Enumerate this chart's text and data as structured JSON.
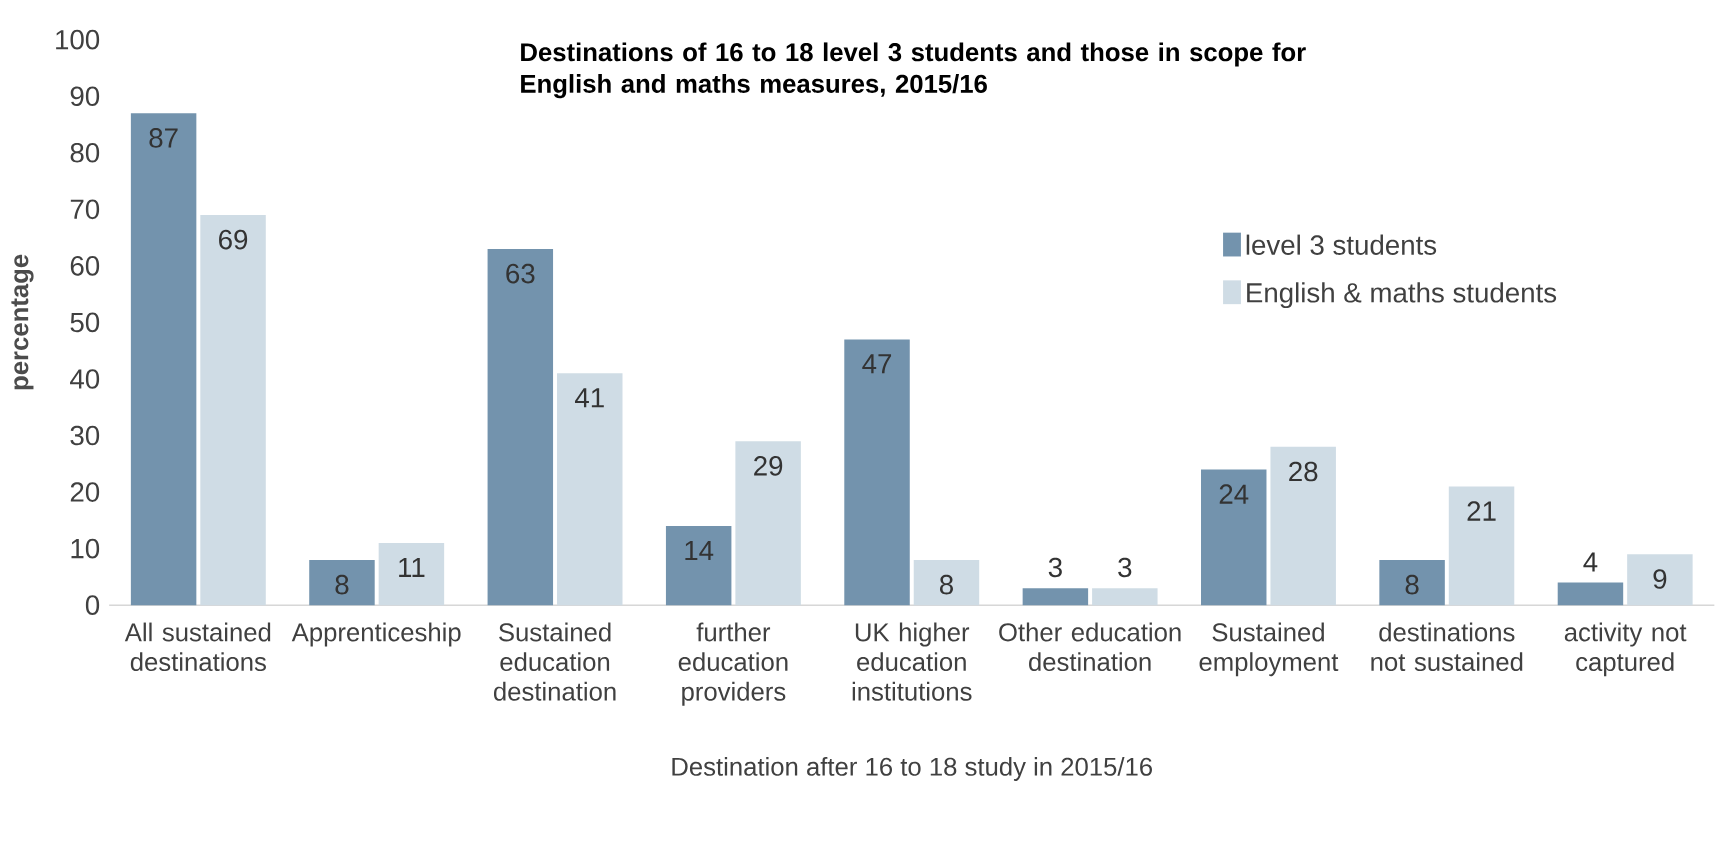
{
  "chart_data": {
    "type": "bar",
    "title": "Destinations of 16 to 18 level 3 students and those in scope for English and maths measures, 2015/16",
    "xlabel": "Destination after 16 to 18 study in 2015/16",
    "ylabel": "percentage",
    "categories": [
      "All sustained destinations",
      "Apprenticeship",
      "Sustained education destination",
      "further education providers",
      "UK higher education institutions",
      "Other education destination",
      "Sustained employment",
      "destinations not sustained",
      "activity not captured"
    ],
    "series": [
      {
        "name": "level 3 students",
        "color": "#7393ad",
        "values": [
          87,
          8,
          63,
          14,
          47,
          3,
          24,
          8,
          4
        ]
      },
      {
        "name": "English & maths students",
        "color": "#cfdce5",
        "values": [
          69,
          11,
          41,
          29,
          8,
          3,
          28,
          21,
          9
        ]
      }
    ],
    "ylim": [
      0,
      100
    ],
    "yticks": [
      0,
      10,
      20,
      30,
      40,
      50,
      60,
      70,
      80,
      90,
      100
    ],
    "data_labels": true,
    "legend": "right",
    "grid": false
  }
}
